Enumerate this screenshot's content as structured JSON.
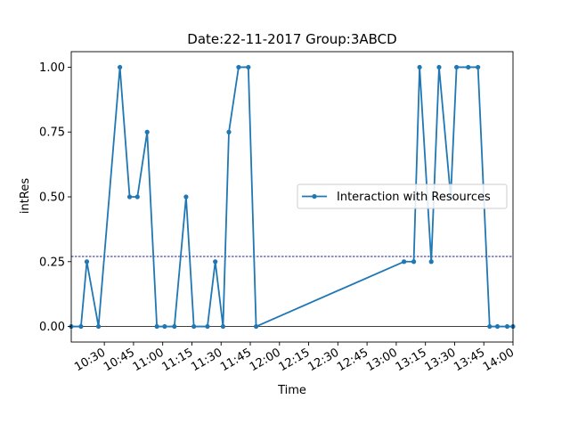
{
  "chart_data": {
    "type": "line",
    "title": "Date:22-11-2017  Group:3ABCD",
    "xlabel": "Time",
    "ylabel": "intRes",
    "xlim": [
      "10:13",
      "14:00"
    ],
    "ylim": [
      -0.06,
      1.06
    ],
    "yticks": [
      "0.00",
      "0.25",
      "0.50",
      "0.75",
      "1.00"
    ],
    "xticks": [
      "10:30",
      "10:45",
      "11:00",
      "11:15",
      "11:30",
      "11:45",
      "12:00",
      "12:15",
      "12:30",
      "12:45",
      "13:00",
      "13:15",
      "13:30",
      "13:45",
      "14:00"
    ],
    "legend_position": "center-right",
    "grid": false,
    "colors": {
      "series": "#1f77b4",
      "threshold": "#00008b",
      "zero_line": "#000000"
    },
    "reference_lines": [
      {
        "y": 0.27,
        "style": "dashed",
        "color": "#00008b"
      },
      {
        "y": 0.0,
        "style": "solid",
        "color": "#000000"
      }
    ],
    "series": [
      {
        "name": "Interaction with Resources",
        "x": [
          "10:13",
          "10:18",
          "10:21",
          "10:27",
          "10:38",
          "10:43",
          "10:47",
          "10:52",
          "10:57",
          "11:01",
          "11:06",
          "11:12",
          "11:16",
          "11:23",
          "11:27",
          "11:31",
          "11:34",
          "11:39",
          "11:44",
          "11:48",
          "13:04",
          "13:09",
          "13:12",
          "13:18",
          "13:22",
          "13:28",
          "13:31",
          "13:37",
          "13:42",
          "13:48",
          "13:52",
          "13:57",
          "14:00"
        ],
        "y": [
          0,
          0,
          0.25,
          0,
          1,
          0.5,
          0.5,
          0.75,
          0,
          0,
          0,
          0.5,
          0,
          0,
          0.25,
          0,
          0.75,
          1,
          1,
          0,
          0.25,
          0.25,
          1,
          0.25,
          1,
          0.5,
          1,
          1,
          1,
          0,
          0,
          0,
          0
        ]
      }
    ]
  }
}
